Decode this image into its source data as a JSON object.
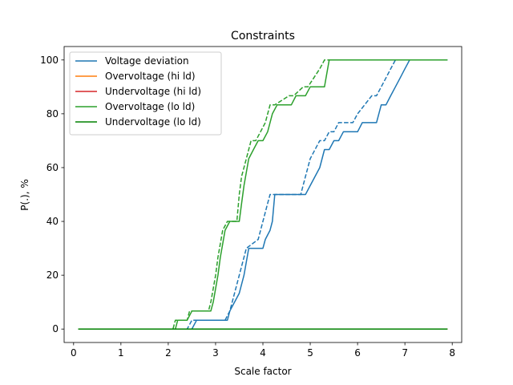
{
  "chart_data": {
    "type": "line",
    "title": "Constraints",
    "xlabel": "Scale factor",
    "ylabel": "P(.), %",
    "xlim": [
      -0.2,
      8.2
    ],
    "ylim": [
      -5,
      105
    ],
    "xticks": [
      0,
      1,
      2,
      3,
      4,
      5,
      6,
      7,
      8
    ],
    "yticks": [
      0,
      20,
      40,
      60,
      80,
      100
    ],
    "grid": false,
    "legend": {
      "placement": "top-left",
      "entries": [
        {
          "name": "Voltage deviation",
          "color": "#1f77b4"
        },
        {
          "name": "Overvoltage (hi ld)",
          "color": "#ff7f0e"
        },
        {
          "name": "Undervoltage (hi ld)",
          "color": "#d62728"
        },
        {
          "name": "Overvoltage (lo ld)",
          "color": "#2ca02c"
        },
        {
          "name": "Undervoltage (lo ld)",
          "color": "#008000"
        }
      ]
    },
    "series": [
      {
        "name": "Voltage deviation",
        "color": "#1f77b4",
        "dashed": false,
        "x": [
          0.1,
          2.5,
          2.6,
          3.25,
          3.3,
          3.5,
          3.6,
          3.7,
          4.0,
          4.05,
          4.15,
          4.2,
          4.25,
          4.9,
          5.0,
          5.2,
          5.3,
          5.4,
          5.5,
          5.6,
          5.7,
          6.0,
          6.1,
          6.4,
          6.5,
          6.6,
          6.7,
          6.8,
          6.9,
          7.0,
          7.1,
          7.9
        ],
        "y": [
          0,
          0,
          3.3,
          3.3,
          6.7,
          13.3,
          20,
          30,
          30,
          33.3,
          36.7,
          40,
          50,
          50,
          53.3,
          60,
          66.7,
          66.7,
          70,
          70,
          73.3,
          73.3,
          76.7,
          76.7,
          83.3,
          83.3,
          86.7,
          90,
          93.3,
          96.7,
          100,
          100
        ]
      },
      {
        "name": "Voltage deviation (dashed)",
        "color": "#1f77b4",
        "dashed": true,
        "x": [
          0.1,
          2.4,
          2.5,
          3.2,
          3.3,
          3.4,
          3.5,
          3.65,
          3.9,
          4.0,
          4.1,
          4.15,
          4.8,
          4.9,
          5.0,
          5.1,
          5.2,
          5.3,
          5.4,
          5.5,
          5.6,
          5.9,
          6.0,
          6.3,
          6.4,
          6.5,
          6.6,
          6.7,
          6.8,
          7.9
        ],
        "y": [
          0,
          0,
          3.3,
          3.3,
          6.7,
          13.3,
          20,
          30,
          33.3,
          40,
          46.7,
          50,
          50,
          56.7,
          63.3,
          66.7,
          70,
          70,
          73.3,
          73.3,
          76.7,
          76.7,
          80,
          86.7,
          86.7,
          90,
          93.3,
          96.7,
          100,
          100
        ]
      },
      {
        "name": "Overvoltage (hi ld)",
        "color": "#ff7f0e",
        "dashed": false,
        "x": [
          0.1,
          7.9
        ],
        "y": [
          0,
          0
        ]
      },
      {
        "name": "Undervoltage (hi ld)",
        "color": "#d62728",
        "dashed": false,
        "x": [
          0.1,
          7.9
        ],
        "y": [
          0,
          0
        ]
      },
      {
        "name": "Overvoltage (lo ld)",
        "color": "#2ca02c",
        "dashed": false,
        "x": [
          0.1,
          2.15,
          2.2,
          2.4,
          2.5,
          2.9,
          2.95,
          3.05,
          3.1,
          3.2,
          3.3,
          3.5,
          3.55,
          3.6,
          3.7,
          3.8,
          3.9,
          4.0,
          4.1,
          4.2,
          4.3,
          4.6,
          4.7,
          4.9,
          5.0,
          5.3,
          5.4,
          7.9
        ],
        "y": [
          0,
          0,
          3.3,
          3.3,
          6.7,
          6.7,
          10,
          20,
          26.7,
          36.7,
          40,
          40,
          46.7,
          53.3,
          63.3,
          66.7,
          70,
          70,
          73.3,
          80,
          83.3,
          83.3,
          86.7,
          86.7,
          90,
          90,
          100,
          100
        ]
      },
      {
        "name": "Overvoltage (lo ld) (dashed)",
        "color": "#2ca02c",
        "dashed": true,
        "x": [
          0.1,
          2.1,
          2.15,
          2.4,
          2.45,
          2.85,
          2.9,
          3.0,
          3.05,
          3.15,
          3.25,
          3.45,
          3.5,
          3.55,
          3.65,
          3.75,
          3.85,
          3.95,
          4.05,
          4.15,
          4.25,
          4.55,
          4.65,
          4.85,
          4.95,
          5.2,
          5.3,
          7.9
        ],
        "y": [
          0,
          0,
          3.3,
          3.3,
          6.7,
          6.7,
          10,
          20,
          26.7,
          36.7,
          40,
          40,
          50,
          56.7,
          63.3,
          70,
          70,
          73.3,
          76.7,
          83.3,
          83.3,
          86.7,
          86.7,
          90,
          90,
          96.7,
          100,
          100
        ]
      },
      {
        "name": "Undervoltage (lo ld)",
        "color": "#008000",
        "dashed": false,
        "x": [
          0.1,
          7.9
        ],
        "y": [
          0,
          0
        ]
      }
    ]
  }
}
